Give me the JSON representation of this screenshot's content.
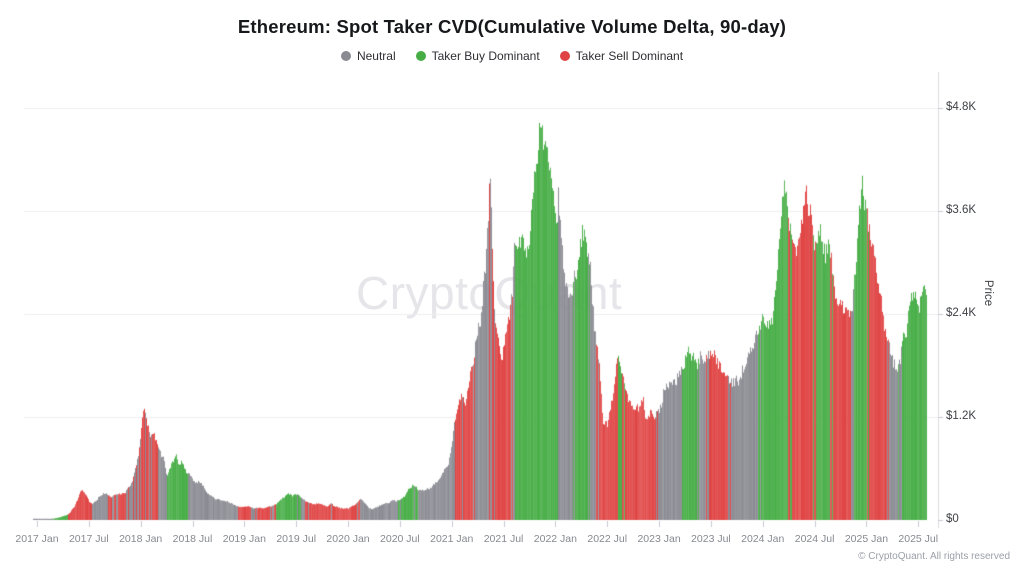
{
  "watermark": "CryptoQuant",
  "footer": "© CryptoQuant. All rights reserved",
  "chart_data": {
    "type": "bar",
    "title": "Ethereum: Spot Taker CVD(Cumulative Volume Delta, 90-day)",
    "ylabel": "Price",
    "xlabel": "",
    "ylim": [
      0,
      4800
    ],
    "currency": "USD",
    "grid": "horizontal",
    "legend_position": "top-center",
    "y_ticks": [
      "$0",
      "$1.2K",
      "$2.4K",
      "$3.6K",
      "$4.8K"
    ],
    "y_tick_values": [
      0,
      1200,
      2400,
      3600,
      4800
    ],
    "x_ticks": [
      "2017 Jan",
      "2017 Jul",
      "2018 Jan",
      "2018 Jul",
      "2019 Jan",
      "2019 Jul",
      "2020 Jan",
      "2020 Jul",
      "2021 Jan",
      "2021 Jul",
      "2022 Jan",
      "2022 Jul",
      "2023 Jan",
      "2023 Jul",
      "2024 Jan",
      "2024 Jul",
      "2025 Jan",
      "2025 Jul"
    ],
    "legend": [
      {
        "key": "n",
        "label": "Neutral",
        "color": "#8a8a92"
      },
      {
        "key": "b",
        "label": "Taker Buy Dominant",
        "color": "#46ad45"
      },
      {
        "key": "s",
        "label": "Taker Sell Dominant",
        "color": "#e04343"
      }
    ],
    "points_format": [
      "date",
      "regime",
      "eth_price_usd",
      "mixed_regime_optional",
      "mix_ratio_optional"
    ],
    "points": [
      [
        "2017-01-01",
        "n",
        8
      ],
      [
        "2017-01-15",
        "n",
        10
      ],
      [
        "2017-02-01",
        "n",
        12
      ],
      [
        "2017-02-15",
        "n",
        13
      ],
      [
        "2017-03-01",
        "b",
        18
      ],
      [
        "2017-03-15",
        "b",
        28
      ],
      [
        "2017-04-01",
        "b",
        45
      ],
      [
        "2017-04-15",
        "b",
        60
      ],
      [
        "2017-04-25",
        "s",
        90
      ],
      [
        "2017-05-10",
        "s",
        160
      ],
      [
        "2017-05-25",
        "s",
        280
      ],
      [
        "2017-06-05",
        "s",
        350
      ],
      [
        "2017-06-20",
        "s",
        290
      ],
      [
        "2017-07-01",
        "s",
        220
      ],
      [
        "2017-07-12",
        "n",
        185
      ],
      [
        "2017-08-01",
        "n",
        250
      ],
      [
        "2017-08-20",
        "n",
        310
      ],
      [
        "2017-09-05",
        "n",
        295
      ],
      [
        "2017-09-20",
        "s",
        265,
        "n",
        0.3
      ],
      [
        "2017-10-05",
        "n",
        300
      ],
      [
        "2017-10-20",
        "s",
        300
      ],
      [
        "2017-11-05",
        "s",
        315
      ],
      [
        "2017-11-18",
        "n",
        380
      ],
      [
        "2017-12-01",
        "n",
        460
      ],
      [
        "2017-12-12",
        "s",
        600,
        "n",
        0.35
      ],
      [
        "2017-12-24",
        "s",
        820,
        "n",
        0.35
      ],
      [
        "2018-01-06",
        "s",
        1200,
        "n",
        0.3
      ],
      [
        "2018-01-13",
        "s",
        1310,
        "n",
        0.3
      ],
      [
        "2018-01-22",
        "n",
        1120,
        "s",
        0.4
      ],
      [
        "2018-02-03",
        "s",
        960,
        "n",
        0.3
      ],
      [
        "2018-02-12",
        "s",
        1080,
        "n",
        0.3
      ],
      [
        "2018-02-22",
        "s",
        900
      ],
      [
        "2018-03-08",
        "n",
        780
      ],
      [
        "2018-03-22",
        "n",
        700
      ],
      [
        "2018-04-01",
        "b",
        500
      ],
      [
        "2018-04-15",
        "b",
        640
      ],
      [
        "2018-05-01",
        "b",
        770
      ],
      [
        "2018-05-12",
        "b",
        650
      ],
      [
        "2018-05-22",
        "b",
        690
      ],
      [
        "2018-06-05",
        "b",
        570
      ],
      [
        "2018-06-15",
        "n",
        545
      ],
      [
        "2018-07-01",
        "n",
        470
      ],
      [
        "2018-07-15",
        "n",
        430
      ],
      [
        "2018-08-01",
        "n",
        445
      ],
      [
        "2018-08-15",
        "n",
        330
      ],
      [
        "2018-09-01",
        "n",
        290
      ],
      [
        "2018-09-15",
        "n",
        255
      ],
      [
        "2018-10-01",
        "n",
        235
      ],
      [
        "2018-10-15",
        "n",
        225
      ],
      [
        "2018-11-01",
        "n",
        215
      ],
      [
        "2018-11-15",
        "n",
        195
      ],
      [
        "2018-12-01",
        "n",
        165
      ],
      [
        "2018-12-15",
        "s",
        150
      ],
      [
        "2019-01-01",
        "s",
        152
      ],
      [
        "2019-01-15",
        "s",
        158
      ],
      [
        "2019-02-01",
        "n",
        135
      ],
      [
        "2019-02-15",
        "s",
        142
      ],
      [
        "2019-03-01",
        "s",
        140
      ],
      [
        "2019-03-15",
        "s",
        145
      ],
      [
        "2019-04-01",
        "n",
        162
      ],
      [
        "2019-04-18",
        "s",
        178
      ],
      [
        "2019-05-02",
        "b",
        225
      ],
      [
        "2019-05-18",
        "b",
        272
      ],
      [
        "2019-06-02",
        "b",
        300
      ],
      [
        "2019-06-18",
        "b",
        285
      ],
      [
        "2019-07-02",
        "b",
        300
      ],
      [
        "2019-07-14",
        "n",
        265,
        "b",
        0.25
      ],
      [
        "2019-08-01",
        "n",
        222
      ],
      [
        "2019-08-14",
        "s",
        200
      ],
      [
        "2019-09-01",
        "s",
        182
      ],
      [
        "2019-09-15",
        "s",
        192
      ],
      [
        "2019-10-01",
        "s",
        178
      ],
      [
        "2019-10-15",
        "s",
        152
      ],
      [
        "2019-11-01",
        "s",
        188,
        "n",
        0.25
      ],
      [
        "2019-11-15",
        "s",
        158
      ],
      [
        "2019-12-01",
        "s",
        142
      ],
      [
        "2019-12-15",
        "s",
        133
      ],
      [
        "2020-01-01",
        "s",
        136
      ],
      [
        "2020-01-15",
        "s",
        165
      ],
      [
        "2020-02-01",
        "s",
        195
      ],
      [
        "2020-02-12",
        "n",
        252
      ],
      [
        "2020-02-24",
        "n",
        215
      ],
      [
        "2020-03-10",
        "n",
        150
      ],
      [
        "2020-03-20",
        "n",
        125
      ],
      [
        "2020-04-05",
        "n",
        142
      ],
      [
        "2020-04-20",
        "n",
        165
      ],
      [
        "2020-05-05",
        "n",
        195
      ],
      [
        "2020-05-20",
        "n",
        202
      ],
      [
        "2020-06-05",
        "n",
        232
      ],
      [
        "2020-06-20",
        "n",
        225
      ],
      [
        "2020-07-05",
        "b",
        240
      ],
      [
        "2020-07-20",
        "b",
        305
      ],
      [
        "2020-08-05",
        "b",
        385
      ],
      [
        "2020-08-18",
        "b",
        415
      ],
      [
        "2020-09-02",
        "n",
        358
      ],
      [
        "2020-09-16",
        "n",
        352
      ],
      [
        "2020-10-01",
        "n",
        348
      ],
      [
        "2020-10-16",
        "n",
        378
      ],
      [
        "2020-11-01",
        "n",
        420
      ],
      [
        "2020-11-16",
        "n",
        475
      ],
      [
        "2020-12-01",
        "n",
        560
      ],
      [
        "2020-12-18",
        "n",
        660
      ],
      [
        "2021-01-01",
        "n",
        920
      ],
      [
        "2021-01-12",
        "s",
        1180
      ],
      [
        "2021-01-25",
        "s",
        1380
      ],
      [
        "2021-02-06",
        "s",
        1480,
        "n",
        0.2
      ],
      [
        "2021-02-16",
        "s",
        1320
      ],
      [
        "2021-03-01",
        "s",
        1650
      ],
      [
        "2021-03-14",
        "s",
        1880
      ],
      [
        "2021-03-26",
        "n",
        2080
      ],
      [
        "2021-04-10",
        "n",
        2350
      ],
      [
        "2021-04-24",
        "n",
        2800
      ],
      [
        "2021-05-08",
        "n",
        3600,
        "s",
        0.15
      ],
      [
        "2021-05-13",
        "n",
        4050,
        "s",
        0.15
      ],
      [
        "2021-05-21",
        "n",
        3100,
        "s",
        0.25
      ],
      [
        "2021-05-29",
        "s",
        2350,
        "n",
        0.3
      ],
      [
        "2021-06-12",
        "s",
        2050
      ],
      [
        "2021-06-24",
        "s",
        1880
      ],
      [
        "2021-07-06",
        "s",
        2150
      ],
      [
        "2021-07-20",
        "s",
        2380
      ],
      [
        "2021-08-01",
        "n",
        2650
      ],
      [
        "2021-08-09",
        "n",
        3320
      ],
      [
        "2021-08-18",
        "b",
        3050
      ],
      [
        "2021-09-03",
        "b",
        3380
      ],
      [
        "2021-09-18",
        "b",
        3000
      ],
      [
        "2021-10-03",
        "b",
        3450
      ],
      [
        "2021-10-18",
        "b",
        4050
      ],
      [
        "2021-11-02",
        "b",
        4500
      ],
      [
        "2021-11-11",
        "b",
        4720
      ],
      [
        "2021-11-24",
        "b",
        4350
      ],
      [
        "2021-12-07",
        "b",
        4150
      ],
      [
        "2021-12-20",
        "b",
        3850
      ],
      [
        "2022-01-02",
        "b",
        3480
      ],
      [
        "2022-01-12",
        "n",
        3780
      ],
      [
        "2022-01-23",
        "n",
        3150
      ],
      [
        "2022-02-04",
        "n",
        2780
      ],
      [
        "2022-02-17",
        "n",
        2550
      ],
      [
        "2022-03-02",
        "n",
        2750
      ],
      [
        "2022-03-12",
        "b",
        2880
      ],
      [
        "2022-03-28",
        "b",
        3250
      ],
      [
        "2022-04-08",
        "b",
        3420
      ],
      [
        "2022-04-20",
        "b",
        3080
      ],
      [
        "2022-05-03",
        "n",
        2850
      ],
      [
        "2022-05-16",
        "n",
        2200
      ],
      [
        "2022-06-01",
        "s",
        1850
      ],
      [
        "2022-06-15",
        "s",
        1150
      ],
      [
        "2022-07-01",
        "s",
        1120
      ],
      [
        "2022-07-16",
        "s",
        1400
      ],
      [
        "2022-08-01",
        "s",
        1720
      ],
      [
        "2022-08-11",
        "s",
        1900,
        "b",
        0.35
      ],
      [
        "2022-08-21",
        "b",
        1680
      ],
      [
        "2022-09-03",
        "s",
        1560
      ],
      [
        "2022-09-17",
        "s",
        1380
      ],
      [
        "2022-10-03",
        "s",
        1310
      ],
      [
        "2022-10-18",
        "s",
        1290
      ],
      [
        "2022-11-03",
        "s",
        1420
      ],
      [
        "2022-11-12",
        "s",
        1180
      ],
      [
        "2022-12-01",
        "s",
        1270
      ],
      [
        "2022-12-16",
        "s",
        1210
      ],
      [
        "2023-01-02",
        "n",
        1290
      ],
      [
        "2023-01-16",
        "n",
        1500
      ],
      [
        "2023-02-01",
        "n",
        1610
      ],
      [
        "2023-02-15",
        "n",
        1580
      ],
      [
        "2023-03-03",
        "n",
        1680
      ],
      [
        "2023-03-16",
        "n",
        1740
      ],
      [
        "2023-03-28",
        "b",
        1820
      ],
      [
        "2023-04-10",
        "b",
        2010
      ],
      [
        "2023-04-24",
        "b",
        1890
      ],
      [
        "2023-05-10",
        "b",
        1840
      ],
      [
        "2023-05-26",
        "n",
        1890
      ],
      [
        "2023-06-10",
        "n",
        1860
      ],
      [
        "2023-06-22",
        "s",
        1920
      ],
      [
        "2023-07-06",
        "s",
        1940
      ],
      [
        "2023-07-20",
        "s",
        1880
      ],
      [
        "2023-08-08",
        "s",
        1700
      ],
      [
        "2023-08-24",
        "s",
        1650
      ],
      [
        "2023-09-08",
        "n",
        1625
      ],
      [
        "2023-09-24",
        "n",
        1600
      ],
      [
        "2023-10-10",
        "n",
        1650
      ],
      [
        "2023-10-26",
        "n",
        1780
      ],
      [
        "2023-11-12",
        "n",
        1950
      ],
      [
        "2023-11-28",
        "n",
        2050
      ],
      [
        "2023-12-12",
        "n",
        2200
      ],
      [
        "2023-12-26",
        "b",
        2280
      ],
      [
        "2024-01-10",
        "b",
        2320
      ],
      [
        "2024-01-22",
        "b",
        2240
      ],
      [
        "2024-02-06",
        "b",
        2420
      ],
      [
        "2024-02-20",
        "b",
        2950
      ],
      [
        "2024-03-05",
        "b",
        3650
      ],
      [
        "2024-03-14",
        "b",
        4000
      ],
      [
        "2024-03-28",
        "b",
        3550
      ],
      [
        "2024-04-10",
        "s",
        3380
      ],
      [
        "2024-04-22",
        "s",
        3120
      ],
      [
        "2024-05-06",
        "s",
        3200
      ],
      [
        "2024-05-20",
        "s",
        3620
      ],
      [
        "2024-06-06",
        "s",
        3750
      ],
      [
        "2024-06-20",
        "s",
        3480
      ],
      [
        "2024-07-05",
        "b",
        3180
      ],
      [
        "2024-07-20",
        "b",
        3420
      ],
      [
        "2024-08-06",
        "b",
        3020
      ],
      [
        "2024-08-20",
        "b",
        3280
      ],
      [
        "2024-09-05",
        "s",
        2780
      ],
      [
        "2024-09-20",
        "s",
        2520
      ],
      [
        "2024-10-06",
        "s",
        2580
      ],
      [
        "2024-10-22",
        "s",
        2420
      ],
      [
        "2024-11-08",
        "n",
        2380
      ],
      [
        "2024-11-20",
        "b",
        2850
      ],
      [
        "2024-12-02",
        "b",
        3450
      ],
      [
        "2024-12-15",
        "b",
        3920
      ],
      [
        "2024-12-28",
        "b",
        3600
      ],
      [
        "2025-01-08",
        "s",
        3420
      ],
      [
        "2025-01-22",
        "s",
        3280
      ],
      [
        "2025-02-06",
        "s",
        2820
      ],
      [
        "2025-02-20",
        "s",
        2520
      ],
      [
        "2025-03-06",
        "s",
        2230
      ],
      [
        "2025-03-20",
        "n",
        2020
      ],
      [
        "2025-04-05",
        "n",
        1830
      ],
      [
        "2025-04-18",
        "n",
        1770
      ],
      [
        "2025-05-05",
        "b",
        2020
      ],
      [
        "2025-05-20",
        "b",
        2280
      ],
      [
        "2025-06-04",
        "b",
        2520
      ],
      [
        "2025-06-16",
        "b",
        2700
      ],
      [
        "2025-07-01",
        "b",
        2480
      ],
      [
        "2025-07-14",
        "b",
        2620
      ]
    ]
  }
}
